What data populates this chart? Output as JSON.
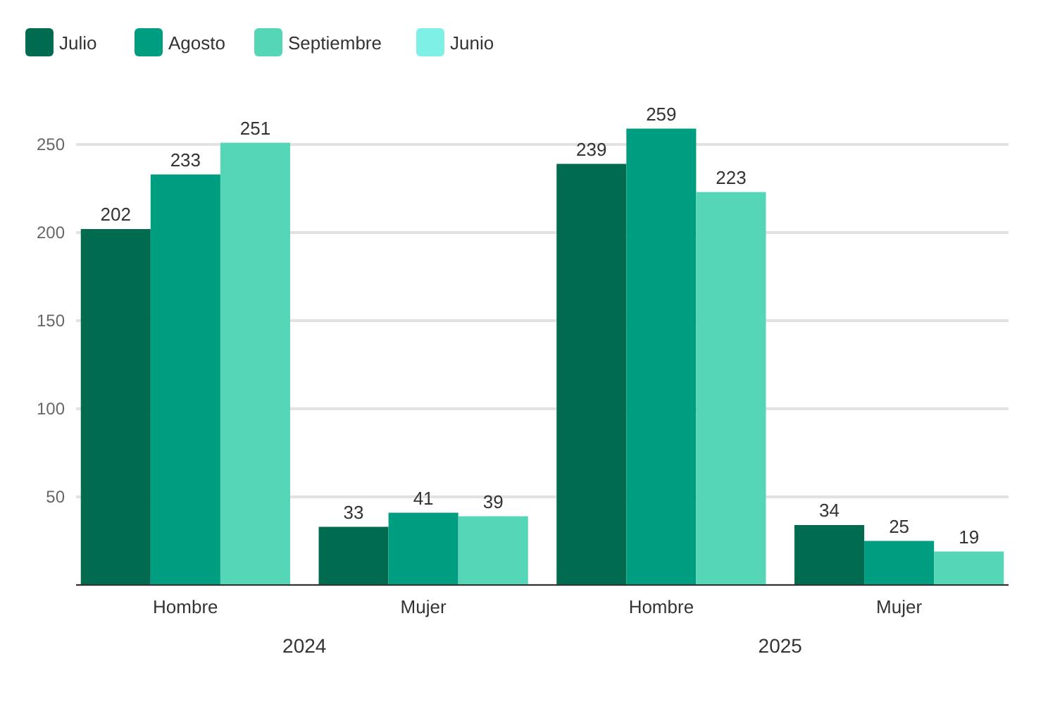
{
  "chart_data": {
    "type": "bar",
    "categories": [
      "Hombre",
      "Mujer",
      "Hombre",
      "Mujer"
    ],
    "series": [
      {
        "name": "Julio",
        "color": "#006b4f",
        "values": [
          202,
          33,
          239,
          34
        ]
      },
      {
        "name": "Agosto",
        "color": "#009e80",
        "values": [
          233,
          41,
          259,
          25
        ]
      },
      {
        "name": "Septiembre",
        "color": "#55d6b7",
        "values": [
          251,
          39,
          223,
          19
        ]
      },
      {
        "name": "Junio",
        "color": "#7ff0e6",
        "values": [
          null,
          null,
          null,
          null
        ]
      }
    ],
    "ylim": [
      0,
      260
    ],
    "yticks": [
      {
        "value": 0,
        "label": null
      },
      50,
      100,
      150,
      200,
      250
    ],
    "grid": "y",
    "legend": "top left",
    "data_labels": true,
    "annotations": [
      "2024",
      "2025"
    ]
  }
}
